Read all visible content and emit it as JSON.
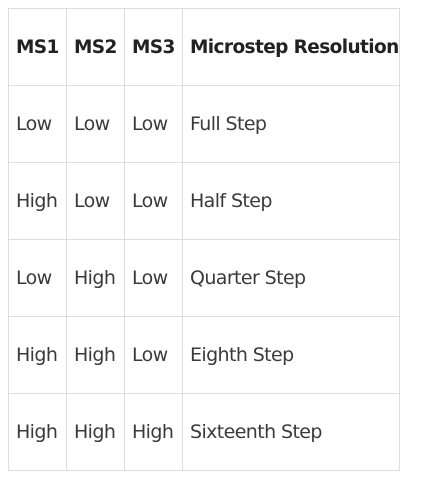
{
  "table": {
    "headers": [
      "MS1",
      "MS2",
      "MS3",
      "Microstep Resolution"
    ],
    "rows": [
      [
        "Low",
        "Low",
        "Low",
        "Full Step"
      ],
      [
        "High",
        "Low",
        "Low",
        "Half Step"
      ],
      [
        "Low",
        "High",
        "Low",
        "Quarter Step"
      ],
      [
        "High",
        "High",
        "Low",
        "Eighth Step"
      ],
      [
        "High",
        "High",
        "High",
        "Sixteenth Step"
      ]
    ]
  }
}
